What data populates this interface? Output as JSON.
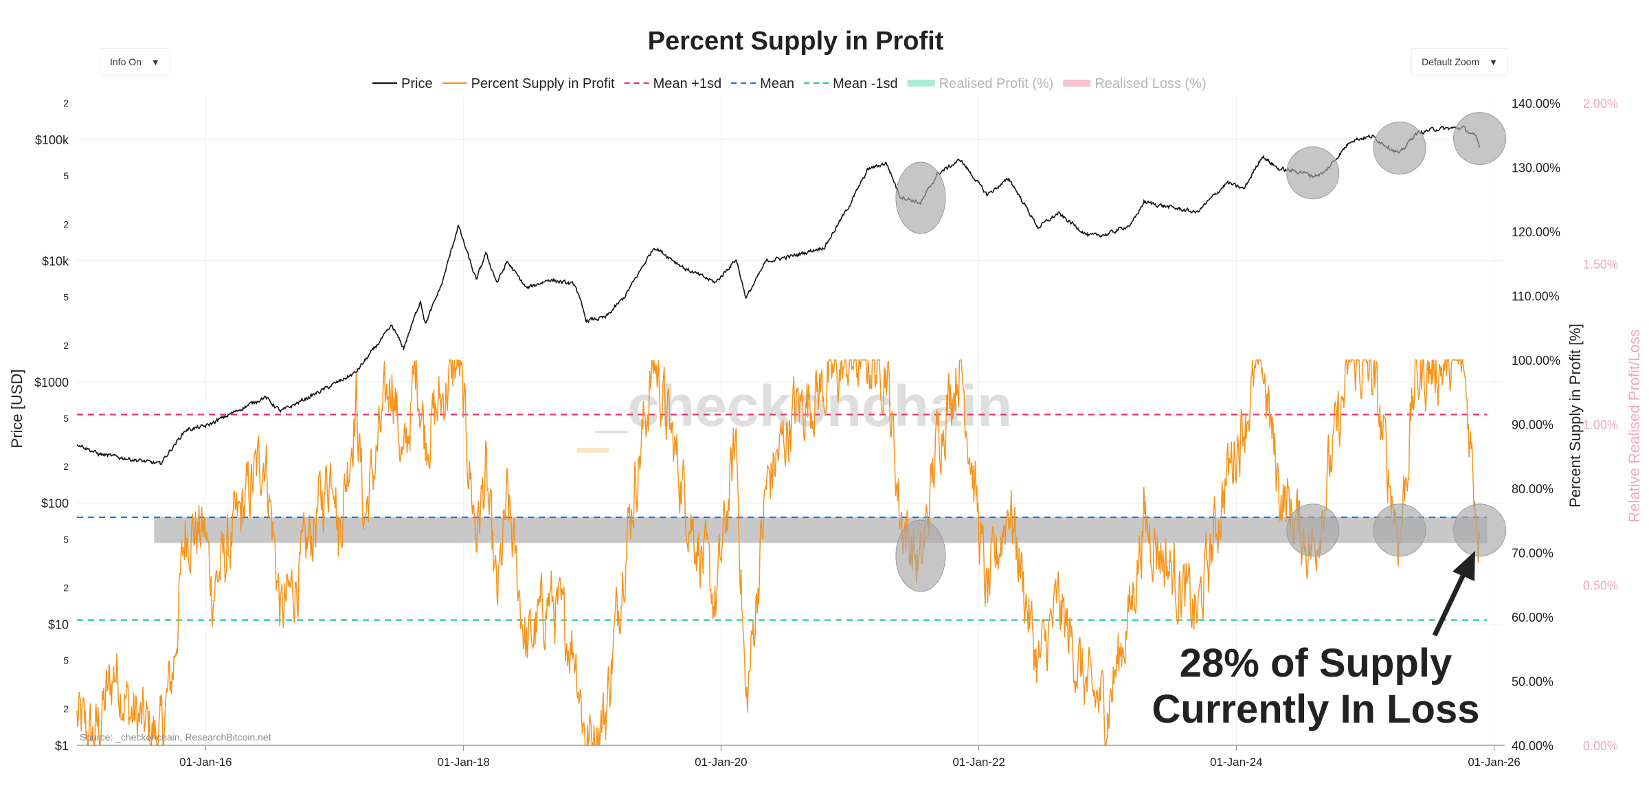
{
  "controls": {
    "info": "Info On",
    "zoom": "Default Zoom",
    "caret": "▼"
  },
  "chart_data": {
    "type": "line",
    "title": "Percent Supply in Profit",
    "ylabel_left": "Price [USD]",
    "ylabel_right": "Percent Supply in Profit [%]",
    "ylabel_right2": "Relative Realised Profit/Loss",
    "source": "Source: _checkonchain, ResearchBitcoin.net",
    "watermark": "_checkonchain",
    "annotation": {
      "line1": "28% of  Supply",
      "line2": "Currently In Loss"
    },
    "legend": [
      {
        "name": "Price",
        "color": "#111111",
        "style": "solid"
      },
      {
        "name": "Percent Supply in Profit",
        "color": "#f7931a",
        "style": "solid"
      },
      {
        "name": "Mean +1sd",
        "color": "#e8336d",
        "style": "dash"
      },
      {
        "name": "Mean",
        "color": "#1a73e8",
        "style": "dash"
      },
      {
        "name": "Mean -1sd",
        "color": "#1fc98b",
        "style": "dash"
      },
      {
        "name": "Realised Profit (%)",
        "color": "#a8ecd2",
        "style": "box",
        "faded": true
      },
      {
        "name": "Realised Loss (%)",
        "color": "#f7c2cf",
        "style": "box",
        "faded": true
      }
    ],
    "x_ticks": [
      "01-Jan-16",
      "01-Jan-18",
      "01-Jan-20",
      "01-Jan-22",
      "01-Jan-24",
      "01-Jan-26"
    ],
    "x_range": [
      "2015-01-01",
      "2026-01-31"
    ],
    "left_axis": {
      "scale": "log",
      "range": [
        1,
        200000
      ],
      "major_ticks": [
        {
          "v": 1,
          "label": "$1"
        },
        {
          "v": 10,
          "label": "$10"
        },
        {
          "v": 100,
          "label": "$100"
        },
        {
          "v": 1000,
          "label": "$1000"
        },
        {
          "v": 10000,
          "label": "$10k"
        },
        {
          "v": 100000,
          "label": "$100k"
        }
      ],
      "minor_ticks": [
        {
          "v": 2,
          "label": "2"
        },
        {
          "v": 5,
          "label": "5"
        },
        {
          "v": 20,
          "label": "2"
        },
        {
          "v": 50,
          "label": "5"
        },
        {
          "v": 200,
          "label": "2"
        },
        {
          "v": 500,
          "label": "5"
        },
        {
          "v": 2000,
          "label": "2"
        },
        {
          "v": 5000,
          "label": "5"
        },
        {
          "v": 20000,
          "label": "2"
        },
        {
          "v": 50000,
          "label": "5"
        },
        {
          "v": 200000,
          "label": "2"
        }
      ]
    },
    "right_axis": {
      "range": [
        40,
        140
      ],
      "ticks": [
        "40.00%",
        "50.00%",
        "60.00%",
        "70.00%",
        "80.00%",
        "90.00%",
        "100.00%",
        "110.00%",
        "120.00%",
        "130.00%",
        "140.00%"
      ]
    },
    "right_axis2": {
      "range": [
        0,
        2
      ],
      "ticks": [
        "0.00%",
        "0.50%",
        "1.00%",
        "1.50%",
        "2.00%"
      ]
    },
    "mean_lines": {
      "plus1sd": 91.5,
      "mean": 75.5,
      "minus1sd": 59.5
    },
    "band": [
      71.5,
      75.5
    ],
    "price_series": [
      [
        "2015-01-01",
        310
      ],
      [
        "2015-03-01",
        255
      ],
      [
        "2015-06-01",
        230
      ],
      [
        "2015-08-25",
        210
      ],
      [
        "2015-11-05",
        400
      ],
      [
        "2016-01-01",
        430
      ],
      [
        "2016-06-17",
        750
      ],
      [
        "2016-08-01",
        570
      ],
      [
        "2016-12-31",
        960
      ],
      [
        "2017-03-01",
        1190
      ],
      [
        "2017-06-12",
        2900
      ],
      [
        "2017-07-15",
        1900
      ],
      [
        "2017-09-01",
        4700
      ],
      [
        "2017-09-15",
        3000
      ],
      [
        "2017-11-01",
        6500
      ],
      [
        "2017-12-17",
        19500
      ],
      [
        "2018-02-06",
        6900
      ],
      [
        "2018-03-05",
        11500
      ],
      [
        "2018-04-06",
        6600
      ],
      [
        "2018-05-05",
        9800
      ],
      [
        "2018-06-29",
        5900
      ],
      [
        "2018-09-01",
        7000
      ],
      [
        "2018-11-14",
        6300
      ],
      [
        "2018-12-15",
        3200
      ],
      [
        "2019-02-08",
        3400
      ],
      [
        "2019-04-02",
        5000
      ],
      [
        "2019-06-26",
        13000
      ],
      [
        "2019-09-24",
        8500
      ],
      [
        "2019-12-17",
        6600
      ],
      [
        "2020-02-13",
        10300
      ],
      [
        "2020-03-12",
        4900
      ],
      [
        "2020-05-08",
        9900
      ],
      [
        "2020-07-27",
        11000
      ],
      [
        "2020-10-21",
        13000
      ],
      [
        "2020-12-31",
        29000
      ],
      [
        "2021-02-21",
        57000
      ],
      [
        "2021-04-14",
        64000
      ],
      [
        "2021-05-23",
        34000
      ],
      [
        "2021-07-20",
        29800
      ],
      [
        "2021-09-06",
        52000
      ],
      [
        "2021-11-10",
        68000
      ],
      [
        "2022-01-24",
        35000
      ],
      [
        "2022-03-28",
        47500
      ],
      [
        "2022-06-18",
        18800
      ],
      [
        "2022-08-14",
        24500
      ],
      [
        "2022-11-09",
        16000
      ],
      [
        "2022-12-31",
        16500
      ],
      [
        "2023-03-10",
        20000
      ],
      [
        "2023-04-14",
        30500
      ],
      [
        "2023-09-11",
        25000
      ],
      [
        "2023-12-06",
        44000
      ],
      [
        "2024-01-23",
        39000
      ],
      [
        "2024-03-14",
        73000
      ],
      [
        "2024-05-01",
        57000
      ],
      [
        "2024-07-05",
        54000
      ],
      [
        "2024-08-05",
        50000
      ],
      [
        "2024-09-06",
        53000
      ],
      [
        "2024-11-22",
        99000
      ],
      [
        "2025-01-20",
        106000
      ],
      [
        "2025-04-08",
        76000
      ],
      [
        "2025-05-22",
        111000
      ],
      [
        "2025-07-14",
        122000
      ],
      [
        "2025-10-06",
        125000
      ],
      [
        "2025-11-12",
        103000
      ],
      [
        "2025-11-21",
        86000
      ]
    ],
    "supply_in_profit_series": [
      [
        "2015-01-01",
        44
      ],
      [
        "2015-01-25",
        42
      ],
      [
        "2015-02-20",
        41
      ],
      [
        "2015-04-20",
        52
      ],
      [
        "2015-06-01",
        45
      ],
      [
        "2015-08-25",
        41
      ],
      [
        "2015-10-01",
        52
      ],
      [
        "2015-11-05",
        74
      ],
      [
        "2015-12-31",
        73
      ],
      [
        "2016-01-20",
        64
      ],
      [
        "2016-03-01",
        70
      ],
      [
        "2016-06-17",
        86
      ],
      [
        "2016-08-02",
        60
      ],
      [
        "2016-10-01",
        68
      ],
      [
        "2016-12-31",
        85
      ],
      [
        "2017-01-11",
        72
      ],
      [
        "2017-03-03",
        94
      ],
      [
        "2017-03-25",
        75
      ],
      [
        "2017-06-12",
        98
      ],
      [
        "2017-07-15",
        83
      ],
      [
        "2017-08-20",
        99
      ],
      [
        "2017-09-15",
        88
      ],
      [
        "2017-12-17",
        100
      ],
      [
        "2018-02-06",
        73
      ],
      [
        "2018-03-05",
        82
      ],
      [
        "2018-04-06",
        62
      ],
      [
        "2018-05-05",
        78
      ],
      [
        "2018-06-29",
        55
      ],
      [
        "2018-09-01",
        63
      ],
      [
        "2018-11-14",
        55
      ],
      [
        "2018-12-15",
        40
      ],
      [
        "2019-02-08",
        45
      ],
      [
        "2019-04-02",
        70
      ],
      [
        "2019-06-26",
        100
      ],
      [
        "2019-09-24",
        78
      ],
      [
        "2019-12-17",
        62
      ],
      [
        "2020-02-13",
        88
      ],
      [
        "2020-03-12",
        45
      ],
      [
        "2020-05-08",
        80
      ],
      [
        "2020-07-27",
        92
      ],
      [
        "2020-10-21",
        96
      ],
      [
        "2020-12-31",
        100
      ],
      [
        "2021-02-21",
        100
      ],
      [
        "2021-04-14",
        99
      ],
      [
        "2021-05-23",
        76
      ],
      [
        "2021-07-20",
        67
      ],
      [
        "2021-09-06",
        88
      ],
      [
        "2021-11-10",
        100
      ],
      [
        "2022-01-24",
        63
      ],
      [
        "2022-03-28",
        78
      ],
      [
        "2022-06-18",
        52
      ],
      [
        "2022-08-14",
        62
      ],
      [
        "2022-11-09",
        48
      ],
      [
        "2023-01-01",
        46
      ],
      [
        "2023-03-10",
        62
      ],
      [
        "2023-04-14",
        75
      ],
      [
        "2023-09-11",
        60
      ],
      [
        "2023-12-06",
        82
      ],
      [
        "2024-03-14",
        100
      ],
      [
        "2024-05-01",
        80
      ],
      [
        "2024-08-05",
        70
      ],
      [
        "2024-11-22",
        100
      ],
      [
        "2025-01-20",
        98
      ],
      [
        "2025-04-08",
        72
      ],
      [
        "2025-05-22",
        97
      ],
      [
        "2025-07-14",
        99
      ],
      [
        "2025-10-06",
        99
      ],
      [
        "2025-11-21",
        72
      ]
    ],
    "highlight_circles": [
      {
        "date": "2021-07-20",
        "axis": "price",
        "value": 33000,
        "rx_days": 75,
        "ry_axis_units": "tall"
      },
      {
        "date": "2021-07-20",
        "axis": "supply",
        "value": 69.5,
        "tall": true
      },
      {
        "date": "2024-08-05",
        "axis": "price",
        "value": 53000
      },
      {
        "date": "2024-08-05",
        "axis": "supply",
        "value": 73.5
      },
      {
        "date": "2025-04-08",
        "axis": "price",
        "value": 85000
      },
      {
        "date": "2025-04-08",
        "axis": "supply",
        "value": 73.5
      },
      {
        "date": "2025-11-21",
        "axis": "price",
        "value": 102000
      },
      {
        "date": "2025-11-21",
        "axis": "supply",
        "value": 73.5
      }
    ]
  }
}
